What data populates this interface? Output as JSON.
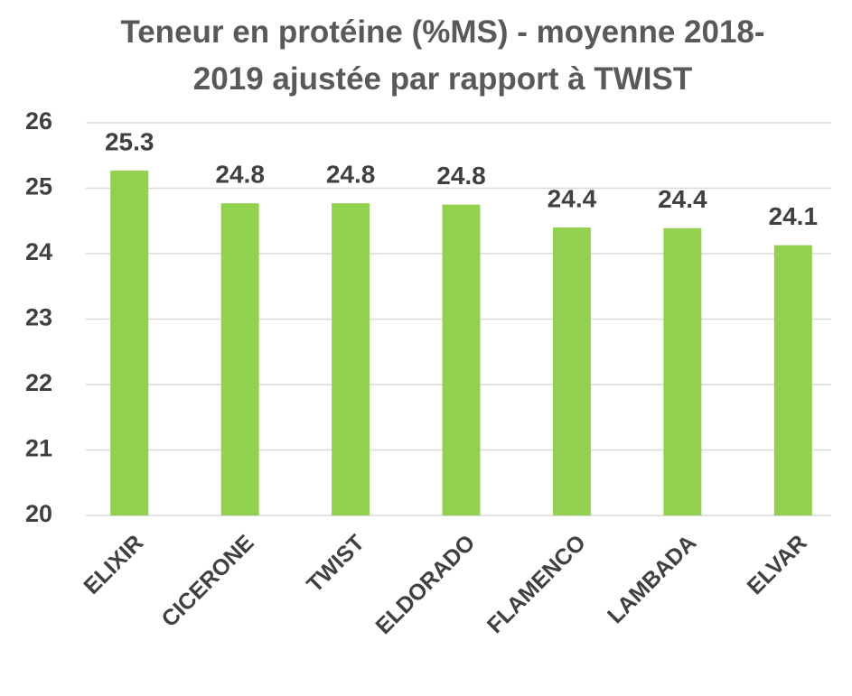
{
  "chart_data": {
    "type": "bar",
    "title": "Teneur en protéine (%MS) - moyenne 2018-2019 ajustée par rapport à TWIST",
    "categories": [
      "ELIXIR",
      "CICERONE",
      "TWIST",
      "ELDORADO",
      "FLAMENCO",
      "LAMBADA",
      "ELVAR"
    ],
    "values": [
      25.27,
      24.77,
      24.77,
      24.75,
      24.4,
      24.39,
      24.13
    ],
    "value_labels": [
      "25.3",
      "24.8",
      "24.8",
      "24.8",
      "24.4",
      "24.4",
      "24.1"
    ],
    "color": "#92d050",
    "ylim": [
      20,
      26
    ],
    "yticks": [
      20,
      21,
      22,
      23,
      24,
      25,
      26
    ],
    "grid": true
  }
}
